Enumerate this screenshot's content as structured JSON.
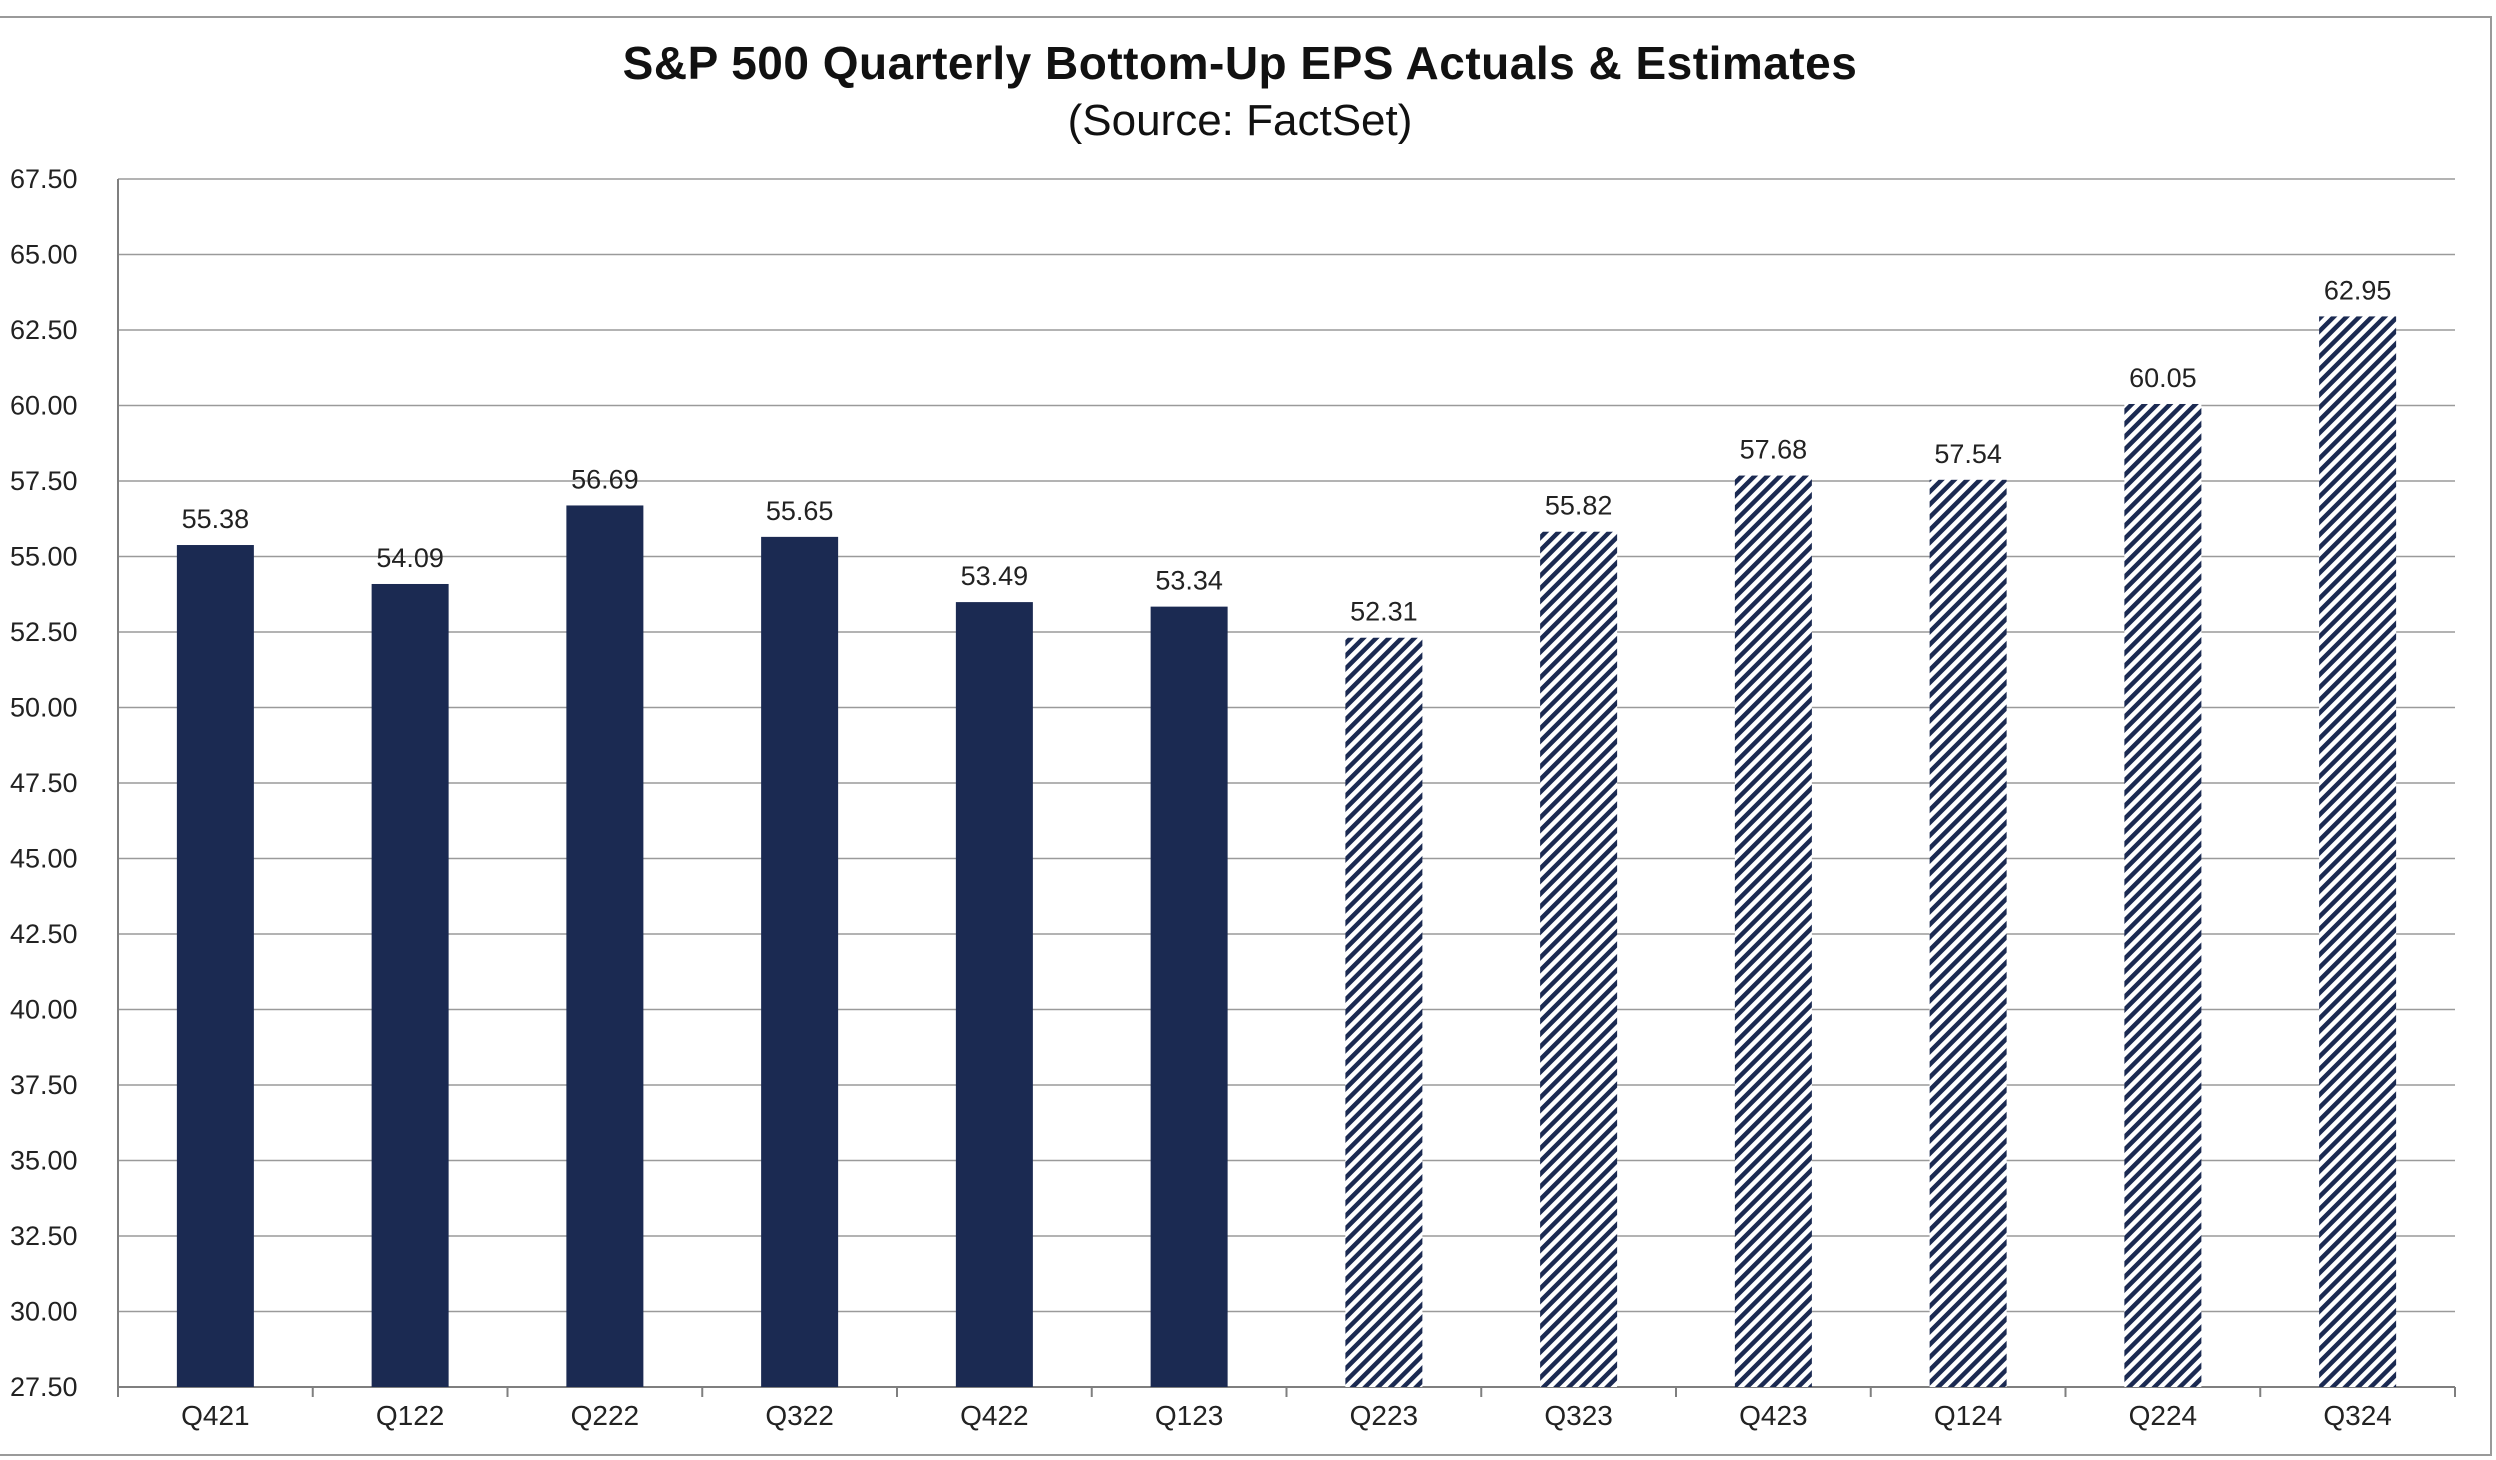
{
  "chart_data": {
    "type": "bar",
    "title": "S&P 500 Quarterly Bottom-Up EPS Actuals & Estimates",
    "subtitle": "(Source: FactSet)",
    "xlabel": "",
    "ylabel": "",
    "ylim": [
      27.5,
      67.5
    ],
    "yticks": [
      "67.50",
      "65.00",
      "62.50",
      "60.00",
      "57.50",
      "55.00",
      "52.50",
      "50.00",
      "47.50",
      "45.00",
      "42.50",
      "40.00",
      "37.50",
      "35.00",
      "32.50",
      "30.00",
      "27.50"
    ],
    "grid": true,
    "categories": [
      "Q421",
      "Q122",
      "Q222",
      "Q322",
      "Q422",
      "Q123",
      "Q223",
      "Q323",
      "Q423",
      "Q124",
      "Q224",
      "Q324"
    ],
    "values": [
      55.38,
      54.09,
      56.69,
      55.65,
      53.49,
      53.34,
      52.31,
      55.82,
      57.68,
      57.54,
      60.05,
      62.95
    ],
    "value_labels": [
      "55.38",
      "54.09",
      "56.69",
      "55.65",
      "53.49",
      "53.34",
      "52.31",
      "55.82",
      "57.68",
      "57.54",
      "60.05",
      "62.95"
    ],
    "kinds": [
      "actual",
      "actual",
      "actual",
      "actual",
      "actual",
      "actual",
      "estimate",
      "estimate",
      "estimate",
      "estimate",
      "estimate",
      "estimate"
    ],
    "colors": {
      "actual": "#1b2a52",
      "estimate_hatch": "#1b2a52",
      "grid": "#9a9a9a",
      "axis": "#7f7f7f"
    }
  }
}
